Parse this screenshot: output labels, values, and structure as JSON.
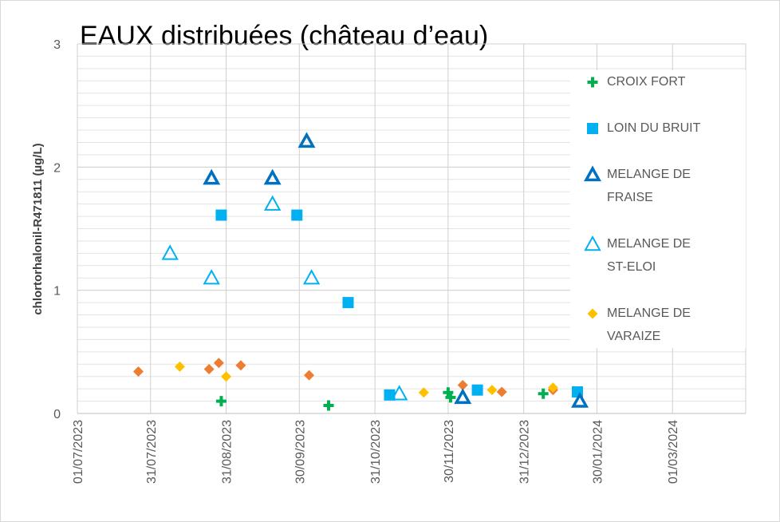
{
  "chart_data": {
    "type": "scatter",
    "title": "EAUX  distribuées (château d’eau)",
    "y_label": "chlortorhalonil-R471811 (µg/L)",
    "xlim": [
      "01/07/2023",
      "31/03/2024"
    ],
    "xticks": [
      "01/07/2023",
      "31/07/2023",
      "31/08/2023",
      "30/09/2023",
      "31/10/2023",
      "30/11/2023",
      "31/12/2023",
      "30/01/2024",
      "01/03/2024"
    ],
    "ylim": [
      0,
      3
    ],
    "yticks": [
      0,
      1,
      2,
      3
    ],
    "grid": true,
    "minor_grid": true,
    "legend": "right",
    "series": [
      {
        "name": "CROIX FORT",
        "color": "#00b050",
        "marker": "plus",
        "x": [
          "29/08/2023",
          "12/10/2023",
          "30/11/2023",
          "01/12/2023",
          "08/01/2024"
        ],
        "values": [
          0.1,
          0.065,
          0.17,
          0.13,
          0.16
        ]
      },
      {
        "name": "LOIN DU BRUIT",
        "color": "#00b0f0",
        "marker": "square",
        "x": [
          "29/08/2023",
          "29/09/2023",
          "20/10/2023",
          "06/11/2023",
          "12/12/2023",
          "22/01/2024"
        ],
        "values": [
          1.61,
          1.61,
          0.9,
          0.15,
          0.19,
          0.175
        ]
      },
      {
        "name": "MELANGE DE FRAISE",
        "color": "#0070c0",
        "marker": "triangle-bold",
        "x": [
          "25/08/2023",
          "19/09/2023",
          "03/10/2023",
          "06/12/2023",
          "23/01/2024"
        ],
        "values": [
          1.91,
          1.91,
          2.21,
          0.13,
          0.1
        ]
      },
      {
        "name": "MELANGE DE ST-ELOI",
        "color": "#00b0f0",
        "marker": "triangle",
        "x": [
          "08/08/2023",
          "25/08/2023",
          "19/09/2023",
          "05/10/2023",
          "10/11/2023"
        ],
        "values": [
          1.3,
          1.1,
          1.7,
          1.1,
          0.16
        ]
      },
      {
        "name": "MELANGE DE VARAIZE",
        "color": "#ffc000",
        "marker": "diamond",
        "x": [
          "12/08/2023",
          "31/08/2023",
          "20/11/2023",
          "18/12/2023",
          "12/01/2024"
        ],
        "values": [
          0.38,
          0.3,
          0.17,
          0.19,
          0.21
        ]
      },
      {
        "name": null,
        "color": "#ed7d31",
        "marker": "diamond",
        "x": [
          "26/07/2023",
          "24/08/2023",
          "28/08/2023",
          "06/09/2023",
          "04/10/2023",
          "06/12/2023",
          "22/12/2023",
          "12/01/2024"
        ],
        "values": [
          0.34,
          0.36,
          0.41,
          0.39,
          0.31,
          0.23,
          0.175,
          0.19
        ]
      }
    ]
  }
}
